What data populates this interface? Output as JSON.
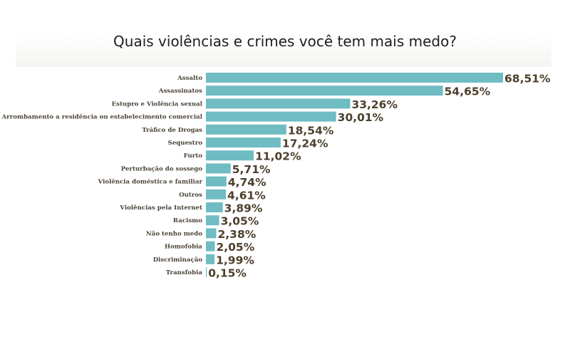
{
  "title": "Quais violências e crimes você tem mais medo?",
  "colors": {
    "bar": "#6fbcc3",
    "value_text": "#4c3f2c",
    "category_text": "#4a4237",
    "title_text": "#1e1e1e"
  },
  "chart_data": {
    "type": "bar",
    "orientation": "horizontal",
    "title": "Quais violências e crimes você tem mais medo?",
    "xlabel": "",
    "ylabel": "",
    "xlim": [
      0,
      68.51
    ],
    "grid": false,
    "legend": "none",
    "categories": [
      "Assalto",
      "Assassinatos",
      "Estupro e Violência sexual",
      "Arrombamento a residência ou estabelecimento comercial",
      "Tráfico de Drogas",
      "Sequestro",
      "Furto",
      "Perturbação do sossego",
      "Violência doméstica e familiar",
      "Outros",
      "Violências pela Internet",
      "Racismo",
      "Não tenho medo",
      "Homofobia",
      "Discriminação",
      "Transfobia"
    ],
    "values": [
      68.51,
      54.65,
      33.26,
      30.01,
      18.54,
      17.24,
      11.02,
      5.71,
      4.74,
      4.61,
      3.89,
      3.05,
      2.38,
      2.05,
      1.99,
      0.15
    ],
    "value_labels": [
      "68,51%",
      "54,65%",
      "33,26%",
      "30,01%",
      "18,54%",
      "17,24%",
      "11,02%",
      "5,71%",
      "4,74%",
      "4,61%",
      "3,89%",
      "3,05%",
      "2,38%",
      "2,05%",
      "1,99%",
      "0,15%"
    ]
  }
}
